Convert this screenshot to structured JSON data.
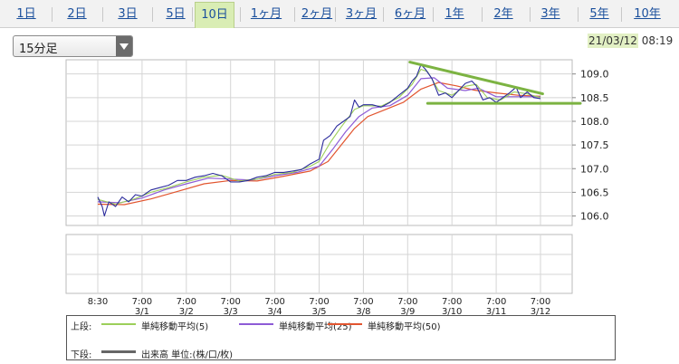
{
  "tabs": [
    {
      "label": "1日"
    },
    {
      "label": "2日"
    },
    {
      "label": "3日"
    },
    {
      "label": "5日"
    },
    {
      "label": "10日",
      "active": true
    },
    {
      "label": "1ヶ月"
    },
    {
      "label": "2ヶ月"
    },
    {
      "label": "3ヶ月"
    },
    {
      "label": "6ヶ月"
    },
    {
      "label": "1年"
    },
    {
      "label": "2年"
    },
    {
      "label": "3年"
    },
    {
      "label": "5年"
    },
    {
      "label": "10年"
    }
  ],
  "interval_select": {
    "value": "15分足",
    "icon": "chevron-down-icon"
  },
  "timestamp": {
    "date": "21/03/12",
    "time": "08:19"
  },
  "colors": {
    "price": "#2b2b9c",
    "ma5": "#9ccf5a",
    "ma25": "#8d5bd6",
    "ma50": "#e2552f",
    "trendline": "#7cb342",
    "grid": "#d5d5d5",
    "frame": "#bbbbbb"
  },
  "legend": {
    "upper_label": "上段:",
    "lower_label": "下段:",
    "ma5": "単純移動平均(5)",
    "ma25": "単純移動平均(25)",
    "ma50": "単純移動平均(50)",
    "volume": "出来高 単位:(株/口/枚)"
  },
  "chart_data": {
    "type": "line",
    "title": "",
    "y_ticks": [
      "109.0",
      "108.5",
      "108.0",
      "107.5",
      "107.0",
      "106.5",
      "106.0"
    ],
    "ylim": [
      105.8,
      109.3
    ],
    "x_ticks": [
      {
        "time": "8:30",
        "date": ""
      },
      {
        "time": "7:00",
        "date": "3/1"
      },
      {
        "time": "7:00",
        "date": "3/2"
      },
      {
        "time": "7:00",
        "date": "3/3"
      },
      {
        "time": "7:00",
        "date": "3/4"
      },
      {
        "time": "7:00",
        "date": "3/5"
      },
      {
        "time": "7:00",
        "date": "3/8"
      },
      {
        "time": "7:00",
        "date": "3/9"
      },
      {
        "time": "7:00",
        "date": "3/10"
      },
      {
        "time": "7:00",
        "date": "3/11"
      },
      {
        "time": "7:00",
        "date": "3/12"
      }
    ],
    "xlim": [
      0,
      10.6
    ],
    "series": [
      {
        "key": "price",
        "values": [
          [
            0.0,
            106.4
          ],
          [
            0.1,
            106.2
          ],
          [
            0.15,
            106.0
          ],
          [
            0.25,
            106.3
          ],
          [
            0.4,
            106.2
          ],
          [
            0.55,
            106.4
          ],
          [
            0.7,
            106.3
          ],
          [
            0.85,
            106.45
          ],
          [
            1.0,
            106.42
          ],
          [
            1.2,
            106.55
          ],
          [
            1.4,
            106.6
          ],
          [
            1.6,
            106.65
          ],
          [
            1.8,
            106.75
          ],
          [
            2.0,
            106.75
          ],
          [
            2.2,
            106.82
          ],
          [
            2.4,
            106.85
          ],
          [
            2.6,
            106.9
          ],
          [
            2.8,
            106.85
          ],
          [
            3.0,
            106.72
          ],
          [
            3.2,
            106.72
          ],
          [
            3.4,
            106.75
          ],
          [
            3.6,
            106.82
          ],
          [
            3.8,
            106.85
          ],
          [
            4.0,
            106.92
          ],
          [
            4.2,
            106.92
          ],
          [
            4.4,
            106.95
          ],
          [
            4.6,
            106.98
          ],
          [
            4.8,
            107.1
          ],
          [
            5.0,
            107.2
          ],
          [
            5.1,
            107.6
          ],
          [
            5.25,
            107.7
          ],
          [
            5.4,
            107.9
          ],
          [
            5.55,
            108.0
          ],
          [
            5.7,
            108.1
          ],
          [
            5.8,
            108.45
          ],
          [
            5.9,
            108.3
          ],
          [
            6.0,
            108.35
          ],
          [
            6.2,
            108.35
          ],
          [
            6.4,
            108.3
          ],
          [
            6.6,
            108.4
          ],
          [
            6.8,
            108.55
          ],
          [
            7.0,
            108.7
          ],
          [
            7.1,
            108.85
          ],
          [
            7.2,
            108.95
          ],
          [
            7.3,
            109.2
          ],
          [
            7.4,
            109.1
          ],
          [
            7.55,
            108.9
          ],
          [
            7.7,
            108.55
          ],
          [
            7.85,
            108.6
          ],
          [
            8.0,
            108.5
          ],
          [
            8.15,
            108.65
          ],
          [
            8.3,
            108.8
          ],
          [
            8.45,
            108.85
          ],
          [
            8.55,
            108.75
          ],
          [
            8.7,
            108.45
          ],
          [
            8.85,
            108.5
          ],
          [
            9.0,
            108.4
          ],
          [
            9.15,
            108.5
          ],
          [
            9.3,
            108.6
          ],
          [
            9.45,
            108.72
          ],
          [
            9.55,
            108.5
          ],
          [
            9.7,
            108.62
          ],
          [
            9.85,
            108.5
          ],
          [
            10.0,
            108.48
          ]
        ]
      },
      {
        "key": "ma5",
        "values": [
          [
            0.0,
            106.35
          ],
          [
            0.4,
            106.25
          ],
          [
            0.8,
            106.35
          ],
          [
            1.2,
            106.5
          ],
          [
            1.6,
            106.6
          ],
          [
            2.0,
            106.72
          ],
          [
            2.4,
            106.82
          ],
          [
            2.8,
            106.86
          ],
          [
            3.2,
            106.74
          ],
          [
            3.6,
            106.78
          ],
          [
            4.0,
            106.88
          ],
          [
            4.4,
            106.92
          ],
          [
            4.8,
            107.05
          ],
          [
            5.0,
            107.15
          ],
          [
            5.25,
            107.55
          ],
          [
            5.5,
            107.88
          ],
          [
            5.8,
            108.25
          ],
          [
            6.0,
            108.33
          ],
          [
            6.4,
            108.32
          ],
          [
            6.8,
            108.5
          ],
          [
            7.1,
            108.78
          ],
          [
            7.3,
            109.1
          ],
          [
            7.45,
            109.05
          ],
          [
            7.7,
            108.65
          ],
          [
            8.0,
            108.55
          ],
          [
            8.3,
            108.74
          ],
          [
            8.55,
            108.78
          ],
          [
            8.8,
            108.5
          ],
          [
            9.1,
            108.45
          ],
          [
            9.4,
            108.62
          ],
          [
            9.7,
            108.58
          ],
          [
            10.0,
            108.5
          ]
        ]
      },
      {
        "key": "ma25",
        "values": [
          [
            0.0,
            106.3
          ],
          [
            0.5,
            106.28
          ],
          [
            1.0,
            106.38
          ],
          [
            1.5,
            106.55
          ],
          [
            2.0,
            106.68
          ],
          [
            2.5,
            106.8
          ],
          [
            3.0,
            106.78
          ],
          [
            3.5,
            106.76
          ],
          [
            4.0,
            106.85
          ],
          [
            4.5,
            106.92
          ],
          [
            5.0,
            107.05
          ],
          [
            5.3,
            107.4
          ],
          [
            5.6,
            107.78
          ],
          [
            5.9,
            108.1
          ],
          [
            6.2,
            108.28
          ],
          [
            6.6,
            108.33
          ],
          [
            7.0,
            108.55
          ],
          [
            7.3,
            108.9
          ],
          [
            7.6,
            108.92
          ],
          [
            7.9,
            108.7
          ],
          [
            8.3,
            108.65
          ],
          [
            8.6,
            108.7
          ],
          [
            9.0,
            108.52
          ],
          [
            9.4,
            108.52
          ],
          [
            10.0,
            108.52
          ]
        ]
      },
      {
        "key": "ma50",
        "values": [
          [
            0.0,
            106.25
          ],
          [
            0.6,
            106.24
          ],
          [
            1.2,
            106.36
          ],
          [
            1.8,
            106.52
          ],
          [
            2.4,
            106.68
          ],
          [
            3.0,
            106.75
          ],
          [
            3.6,
            106.74
          ],
          [
            4.2,
            106.84
          ],
          [
            4.8,
            106.95
          ],
          [
            5.2,
            107.15
          ],
          [
            5.5,
            107.5
          ],
          [
            5.8,
            107.85
          ],
          [
            6.1,
            108.1
          ],
          [
            6.5,
            108.25
          ],
          [
            6.9,
            108.4
          ],
          [
            7.3,
            108.68
          ],
          [
            7.7,
            108.82
          ],
          [
            8.1,
            108.75
          ],
          [
            8.5,
            108.66
          ],
          [
            9.0,
            108.6
          ],
          [
            9.5,
            108.55
          ],
          [
            10.0,
            108.53
          ]
        ]
      }
    ],
    "trendlines": [
      {
        "values": [
          [
            7.05,
            109.25
          ],
          [
            10.05,
            108.58
          ]
        ]
      },
      {
        "values": [
          [
            7.45,
            108.38
          ],
          [
            10.9,
            108.38
          ]
        ]
      }
    ],
    "lower_panel": {
      "label": "volume",
      "values": []
    },
    "grid": true
  }
}
